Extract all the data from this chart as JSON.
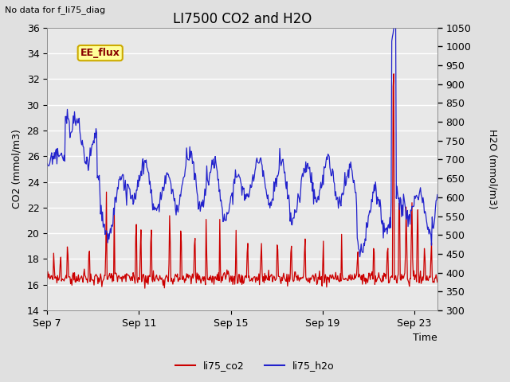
{
  "title": "LI7500 CO2 and H2O",
  "top_left_text": "No data for f_li75_diag",
  "xlabel": "Time",
  "ylabel_left": "CO2 (mmol/m3)",
  "ylabel_right": "H2O (mmol/m3)",
  "ylim_left": [
    14,
    36
  ],
  "ylim_right": [
    300,
    1050
  ],
  "yticks_left": [
    14,
    16,
    18,
    20,
    22,
    24,
    26,
    28,
    30,
    32,
    34,
    36
  ],
  "yticks_right": [
    300,
    350,
    400,
    450,
    500,
    550,
    600,
    650,
    700,
    750,
    800,
    850,
    900,
    950,
    1000,
    1050
  ],
  "xtick_labels": [
    "Sep 7",
    "Sep 11",
    "Sep 15",
    "Sep 19",
    "Sep 23"
  ],
  "xtick_positions": [
    0,
    4,
    8,
    12,
    16
  ],
  "xlim": [
    0,
    17
  ],
  "color_co2": "#cc0000",
  "color_h2o": "#2222cc",
  "color_ee_flux_bg": "#ffff99",
  "color_ee_flux_border": "#ccaa00",
  "color_ee_flux_text": "#880000",
  "ee_flux_label": "EE_flux",
  "legend_co2": "li75_co2",
  "legend_h2o": "li75_h2o",
  "bg_color": "#e0e0e0",
  "plot_bg_color": "#e8e8e8",
  "grid_color": "#ffffff",
  "title_fontsize": 12,
  "label_fontsize": 9,
  "tick_fontsize": 9,
  "n_points": 600
}
